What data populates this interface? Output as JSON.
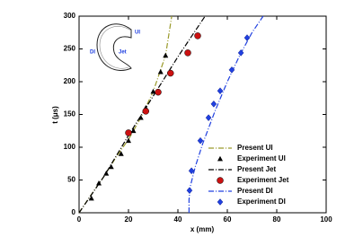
{
  "chart_data": {
    "type": "line",
    "xlabel": "x (mm)",
    "ylabel": "t (μs)",
    "xlim": [
      0,
      100
    ],
    "xticks": [
      0,
      20,
      40,
      60,
      80,
      100
    ],
    "ylim": [
      0,
      300
    ],
    "yticks": [
      0,
      50,
      100,
      150,
      200,
      250,
      300
    ],
    "legend": "lower right",
    "annotations": [
      "UI",
      "DI",
      "Jet"
    ],
    "series": [
      {
        "name": "Present UI",
        "kind": "line",
        "color": "#9a9a2a",
        "x": [
          0,
          5,
          10,
          15,
          20,
          25,
          30,
          35,
          37.5
        ],
        "values": [
          0,
          28,
          55,
          85,
          112,
          145,
          185,
          240,
          300
        ]
      },
      {
        "name": "Experiment UI",
        "kind": "scatter",
        "marker": "triangle",
        "color": "#000000",
        "x": [
          5,
          8,
          11,
          13,
          17,
          20,
          22,
          25,
          27,
          30,
          33,
          35
        ],
        "values": [
          22,
          45,
          60,
          70,
          90,
          110,
          125,
          145,
          160,
          185,
          215,
          240
        ]
      },
      {
        "name": "Present Jet",
        "kind": "line",
        "color": "#000000",
        "x": [
          0,
          10,
          20,
          30,
          40,
          51
        ],
        "values": [
          0,
          55,
          118,
          178,
          238,
          300
        ]
      },
      {
        "name": "Experiment Jet",
        "kind": "scatter",
        "marker": "circle",
        "color": "#cc1111",
        "x": [
          20,
          27,
          32,
          37,
          44,
          48
        ],
        "values": [
          122,
          155,
          184,
          213,
          244,
          270
        ]
      },
      {
        "name": "Present DI",
        "kind": "line",
        "color": "#2040e0",
        "x": [
          44.5,
          44.5,
          45,
          47,
          50,
          55,
          60,
          65,
          70,
          74.5
        ],
        "values": [
          0,
          20,
          40,
          70,
          105,
          155,
          200,
          240,
          275,
          300
        ]
      },
      {
        "name": "Experiment DI",
        "kind": "scatter",
        "marker": "diamond",
        "color": "#2040e0",
        "x": [
          44.7,
          45.5,
          49.1,
          52.4,
          54.5,
          57.1,
          61.8,
          65.5,
          68
        ],
        "values": [
          34,
          64,
          110,
          145,
          166,
          186,
          218,
          244,
          267
        ]
      }
    ]
  }
}
